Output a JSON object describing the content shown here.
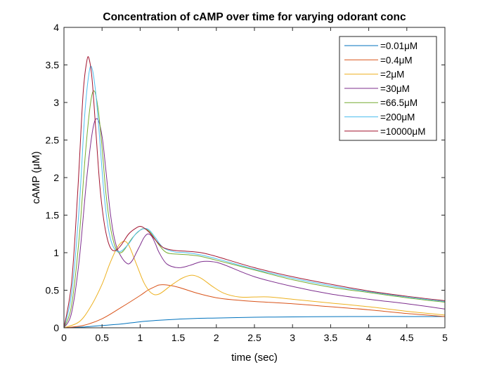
{
  "chart_data": {
    "type": "line",
    "title": "Concentration of cAMP over time for varying odorant conc",
    "xlabel": "time (sec)",
    "ylabel": "cAMP (μM)",
    "xlim": [
      0,
      5
    ],
    "ylim": [
      0,
      4
    ],
    "xticks": [
      0,
      0.5,
      1,
      1.5,
      2,
      2.5,
      3,
      3.5,
      4,
      4.5,
      5
    ],
    "xtick_labels": [
      "0",
      "0.5",
      "1",
      "1.5",
      "2",
      "2.5",
      "3",
      "3.5",
      "4",
      "4.5",
      "5"
    ],
    "yticks": [
      0,
      0.5,
      1,
      1.5,
      2,
      2.5,
      3,
      3.5,
      4
    ],
    "ytick_labels": [
      "0",
      "0.5",
      "1",
      "1.5",
      "2",
      "2.5",
      "3",
      "3.5",
      "4"
    ],
    "grid": false,
    "legend_position": "top-right",
    "series": [
      {
        "name": "=0.01μM",
        "color": "#0072BD",
        "x": [
          0,
          0.25,
          0.5,
          0.75,
          1,
          1.25,
          1.5,
          1.75,
          2,
          2.5,
          3,
          3.5,
          4,
          4.5,
          5
        ],
        "y": [
          0,
          0.01,
          0.03,
          0.05,
          0.08,
          0.1,
          0.115,
          0.125,
          0.13,
          0.14,
          0.145,
          0.148,
          0.15,
          0.15,
          0.15
        ]
      },
      {
        "name": "=0.4μM",
        "color": "#D95319",
        "x": [
          0,
          0.25,
          0.5,
          0.75,
          1,
          1.1,
          1.2,
          1.25,
          1.35,
          1.5,
          1.75,
          2,
          2.25,
          2.5,
          3,
          3.5,
          4,
          4.5,
          5
        ],
        "y": [
          0,
          0.03,
          0.12,
          0.27,
          0.43,
          0.5,
          0.55,
          0.57,
          0.57,
          0.54,
          0.46,
          0.4,
          0.37,
          0.35,
          0.32,
          0.28,
          0.24,
          0.19,
          0.15
        ]
      },
      {
        "name": "=2μM",
        "color": "#EDB120",
        "x": [
          0,
          0.2,
          0.35,
          0.5,
          0.6,
          0.7,
          0.78,
          0.85,
          0.95,
          1.05,
          1.15,
          1.25,
          1.4,
          1.55,
          1.68,
          1.8,
          1.95,
          2.1,
          2.3,
          2.5,
          2.7,
          3,
          3.5,
          4,
          4.5,
          5
        ],
        "y": [
          0,
          0.08,
          0.28,
          0.58,
          0.85,
          1.07,
          1.15,
          1.1,
          0.85,
          0.6,
          0.46,
          0.45,
          0.56,
          0.66,
          0.7,
          0.66,
          0.55,
          0.46,
          0.41,
          0.41,
          0.41,
          0.38,
          0.33,
          0.28,
          0.22,
          0.17
        ]
      },
      {
        "name": "=30μM",
        "color": "#7E2F8E",
        "x": [
          0,
          0.1,
          0.2,
          0.3,
          0.38,
          0.44,
          0.5,
          0.55,
          0.6,
          0.65,
          0.7,
          0.75,
          0.8,
          0.85,
          0.9,
          0.95,
          1.0,
          1.05,
          1.1,
          1.15,
          1.2,
          1.25,
          1.35,
          1.5,
          1.65,
          1.8,
          1.95,
          2.1,
          2.5,
          3,
          3.5,
          4,
          4.5,
          5
        ],
        "y": [
          0,
          0.2,
          0.9,
          2.0,
          2.65,
          2.78,
          2.55,
          2.1,
          1.6,
          1.25,
          1.05,
          0.95,
          0.88,
          0.85,
          0.9,
          1.0,
          1.1,
          1.2,
          1.25,
          1.22,
          1.12,
          1.0,
          0.85,
          0.8,
          0.83,
          0.88,
          0.88,
          0.84,
          0.68,
          0.55,
          0.45,
          0.38,
          0.32,
          0.25
        ]
      },
      {
        "name": "=66.5μM",
        "color": "#77AC30",
        "x": [
          0,
          0.1,
          0.2,
          0.28,
          0.35,
          0.4,
          0.45,
          0.5,
          0.55,
          0.6,
          0.65,
          0.7,
          0.75,
          0.8,
          0.9,
          1.0,
          1.05,
          1.1,
          1.15,
          1.25,
          1.35,
          1.5,
          1.65,
          1.8,
          2.0,
          2.5,
          3,
          3.5,
          4,
          4.5,
          5
        ],
        "y": [
          0,
          0.3,
          1.2,
          2.3,
          3.0,
          3.15,
          2.9,
          2.4,
          1.8,
          1.4,
          1.15,
          1.02,
          1.0,
          1.05,
          1.2,
          1.3,
          1.32,
          1.3,
          1.25,
          1.1,
          1.0,
          0.98,
          0.97,
          0.95,
          0.9,
          0.77,
          0.64,
          0.54,
          0.47,
          0.4,
          0.34
        ]
      },
      {
        "name": "=200μM",
        "color": "#4DBEEE",
        "x": [
          0,
          0.1,
          0.2,
          0.27,
          0.33,
          0.37,
          0.42,
          0.47,
          0.52,
          0.57,
          0.62,
          0.68,
          0.75,
          0.85,
          0.95,
          1.05,
          1.12,
          1.2,
          1.3,
          1.45,
          1.6,
          1.8,
          2.0,
          2.5,
          3,
          3.5,
          4,
          4.5,
          5
        ],
        "y": [
          0,
          0.45,
          1.6,
          2.8,
          3.4,
          3.45,
          3.1,
          2.5,
          1.85,
          1.4,
          1.15,
          1.03,
          1.02,
          1.12,
          1.26,
          1.32,
          1.3,
          1.2,
          1.07,
          1.01,
          1.0,
          0.97,
          0.92,
          0.78,
          0.66,
          0.56,
          0.48,
          0.41,
          0.35
        ]
      },
      {
        "name": "=10000μM",
        "color": "#A2142F",
        "x": [
          0,
          0.1,
          0.18,
          0.25,
          0.3,
          0.33,
          0.37,
          0.42,
          0.47,
          0.52,
          0.57,
          0.62,
          0.68,
          0.75,
          0.85,
          0.95,
          1.0,
          1.05,
          1.12,
          1.2,
          1.3,
          1.45,
          1.6,
          1.8,
          2.0,
          2.5,
          3,
          3.5,
          4,
          4.5,
          5
        ],
        "y": [
          0,
          0.6,
          1.8,
          3.1,
          3.55,
          3.58,
          3.3,
          2.6,
          1.9,
          1.45,
          1.18,
          1.05,
          1.03,
          1.1,
          1.25,
          1.33,
          1.35,
          1.33,
          1.27,
          1.17,
          1.07,
          1.03,
          1.02,
          1.0,
          0.95,
          0.8,
          0.68,
          0.58,
          0.49,
          0.42,
          0.36
        ]
      }
    ]
  }
}
